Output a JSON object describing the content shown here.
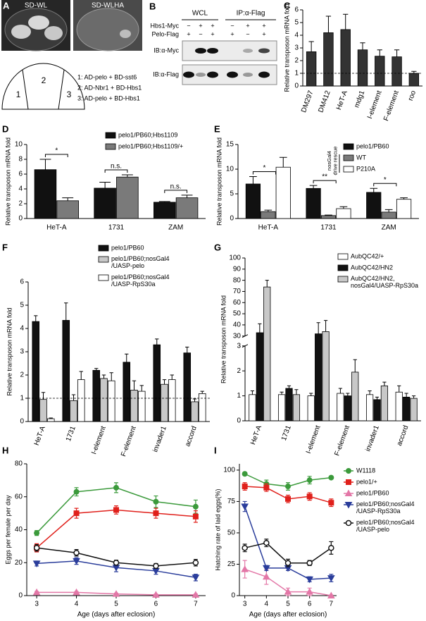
{
  "panel_a": {
    "label": "A",
    "plates": [
      "SD-WL",
      "SD-WLHA"
    ],
    "sectors": [
      "1",
      "2",
      "3"
    ],
    "key": [
      "1: AD-pelo + BD-sst6",
      "2: AD-Nbr1 + BD-Hbs1",
      "3: AD-pelo + BD-Hbs1"
    ]
  },
  "panel_b": {
    "label": "B",
    "groups": [
      "WCL",
      "IP:α-Flag"
    ],
    "rows": [
      {
        "name": "Hbs1-Myc",
        "signs": [
          "−",
          "+",
          "+",
          "−",
          "+",
          "+"
        ]
      },
      {
        "name": "Pelo-Flag",
        "signs": [
          "+",
          "−",
          "+",
          "+",
          "−",
          "+"
        ]
      }
    ],
    "blots": [
      "IB:α-Myc",
      "IB:α-Flag"
    ]
  },
  "chart_data": [
    {
      "type": "bar",
      "panel_label": "C",
      "ylabel": "Relative transposon mRNA fold",
      "categories": [
        "DM297",
        "DM412",
        "HeT-A",
        "mdg1",
        "I-element",
        "F-element",
        "roo"
      ],
      "values": [
        2.7,
        4.2,
        4.45,
        2.85,
        2.35,
        2.3,
        1.0
      ],
      "errors": [
        0.8,
        1.3,
        1.2,
        0.55,
        0.5,
        0.55,
        0.15
      ],
      "color": "#333333",
      "ylim": [
        0,
        6
      ],
      "yticks": [
        0,
        1,
        2,
        3,
        4,
        5,
        6
      ],
      "reference_line": 1
    },
    {
      "type": "bar",
      "panel_label": "D",
      "ylabel": "Relative transposon mRNA fold",
      "categories": [
        "HeT-A",
        "1731",
        "ZAM"
      ],
      "series": [
        {
          "name": "pelo1/PB60;Hbs1109",
          "color": "#111111",
          "values": [
            6.6,
            4.1,
            2.2
          ],
          "errors": [
            1.4,
            0.8,
            0.1
          ]
        },
        {
          "name": "pelo1/PB60;Hbs1109/+",
          "color": "#7a7a7a",
          "values": [
            2.4,
            5.6,
            2.8
          ],
          "errors": [
            0.4,
            0.3,
            0.35
          ]
        }
      ],
      "significance": [
        "*",
        "n.s.",
        "n.s."
      ],
      "ylim": [
        0,
        10
      ],
      "yticks": [
        0,
        2,
        4,
        6,
        8,
        10
      ],
      "legend": "upper right"
    },
    {
      "type": "bar",
      "panel_label": "E",
      "ylabel": "Relative transposon mRNA fold",
      "categories": [
        "HeT-A",
        "1731",
        "ZAM"
      ],
      "series": [
        {
          "name": "pelo1/PB60",
          "color": "#111111",
          "values": [
            7.0,
            6.1,
            5.3
          ],
          "errors": [
            1.5,
            0.6,
            0.8
          ]
        },
        {
          "name": "WT",
          "color": "#7a7a7a",
          "values": [
            1.4,
            0.6,
            1.3
          ],
          "errors": [
            0.3,
            0.1,
            0.5
          ]
        },
        {
          "name": "P210A",
          "color": "#ffffff",
          "values": [
            10.4,
            2.0,
            3.9
          ],
          "errors": [
            2.0,
            0.4,
            0.3
          ]
        }
      ],
      "significance": [
        "*",
        "**",
        "*"
      ],
      "legend_group_label": "nosGal4\ndrive rescue",
      "ylim": [
        0,
        15
      ],
      "yticks": [
        0,
        5,
        10,
        15
      ],
      "legend": "upper right"
    },
    {
      "type": "bar",
      "panel_label": "F",
      "ylabel": "Relative transposon mRNA fold",
      "categories": [
        "HeT-A",
        "1731",
        "I-element",
        "F-element",
        "invader1",
        "accord"
      ],
      "series": [
        {
          "name": "pelo1/PB60",
          "color": "#111111",
          "values": [
            4.3,
            4.35,
            2.2,
            2.55,
            3.3,
            2.95
          ],
          "errors": [
            0.25,
            0.75,
            0.08,
            0.35,
            0.25,
            0.25
          ]
        },
        {
          "name": "pelo1/PB60;nosGal4\n/UASP-pelo",
          "color": "#c8c8c8",
          "values": [
            0.95,
            0.9,
            1.85,
            1.35,
            1.6,
            0.85
          ],
          "errors": [
            0.3,
            0.25,
            0.15,
            0.4,
            0.2,
            0.12
          ]
        },
        {
          "name": "pelo1/PB60;nosGal4\n/UASP-RpS30a",
          "color": "#ffffff",
          "values": [
            0.12,
            1.8,
            1.75,
            1.3,
            1.8,
            1.2
          ],
          "errors": [
            0.03,
            0.35,
            0.35,
            0.25,
            0.2,
            0.1
          ]
        }
      ],
      "ylim": [
        0,
        6
      ],
      "yticks": [
        0,
        1,
        2,
        3,
        4,
        5,
        6
      ],
      "reference_line": 1,
      "legend": "above"
    },
    {
      "type": "bar",
      "panel_label": "G",
      "ylabel": "Relative transposon mRNA fold",
      "categories": [
        "HeT-A",
        "1731",
        "I-element",
        "F-element",
        "invader1",
        "accord"
      ],
      "series": [
        {
          "name": "AubQC42/+",
          "color": "#ffffff",
          "values": [
            1.05,
            1.05,
            1.0,
            1.1,
            1.05,
            1.15
          ],
          "errors": [
            0.15,
            0.1,
            0.1,
            0.2,
            0.15,
            0.25
          ]
        },
        {
          "name": "AubQC42/HN2",
          "color": "#111111",
          "values": [
            33,
            1.3,
            32,
            1.0,
            0.85,
            0.95
          ],
          "errors": [
            8,
            0.1,
            10,
            0.1,
            0.1,
            0.15
          ]
        },
        {
          "name": "AubQC42/HN2,\nnosGal4/UASP-RpS30a",
          "color": "#c8c8c8",
          "values": [
            74,
            1.05,
            34,
            1.95,
            1.4,
            0.9
          ],
          "errors": [
            6,
            0.2,
            10,
            0.5,
            0.15,
            0.1
          ]
        }
      ],
      "ylim": [
        0,
        100
      ],
      "axis_break": [
        3,
        30
      ],
      "yticks": [
        0,
        1,
        2,
        3,
        30,
        40,
        50,
        60,
        70,
        80,
        90,
        100
      ],
      "legend": "upper right"
    },
    {
      "type": "line",
      "panel_label": "H",
      "ylabel": "Eggs per female per day",
      "xlabel": "Age (days after eclosion)",
      "x": [
        3,
        4,
        5,
        6,
        7
      ],
      "xlim": [
        2.75,
        7.25
      ],
      "xticks": [
        3,
        4,
        5,
        6,
        7
      ],
      "ylim": [
        0,
        80
      ],
      "yticks": [
        0,
        20,
        40,
        60,
        80
      ],
      "series": [
        {
          "color": "#3b9a3b",
          "marker": "circle",
          "values": [
            38,
            63,
            65.5,
            57,
            54
          ],
          "errors": [
            1.5,
            2.5,
            3,
            3.5,
            4
          ]
        },
        {
          "color": "#e0201b",
          "marker": "square",
          "values": [
            29,
            50,
            52,
            50,
            48
          ],
          "errors": [
            2.5,
            3,
            2.5,
            3,
            3.5
          ]
        },
        {
          "color": "#e377a7",
          "marker": "triangle-up",
          "values": [
            2,
            2,
            1,
            0.5,
            0.5
          ],
          "errors": [
            0.5,
            0.5,
            0.5,
            0.5,
            0.5
          ]
        },
        {
          "color": "#2a3d9b",
          "marker": "triangle-down",
          "values": [
            19.5,
            21,
            17,
            15,
            11
          ],
          "errors": [
            1.5,
            2,
            2.5,
            2,
            2
          ]
        },
        {
          "color": "#111111",
          "marker": "open-circle",
          "values": [
            29,
            26,
            20,
            18,
            20
          ],
          "errors": [
            2,
            2,
            1.5,
            1.5,
            2
          ]
        }
      ]
    },
    {
      "type": "line",
      "panel_label": "I",
      "ylabel": "Hatching rate of laid eggs(%)",
      "xlabel": "Age (days after eclosion)",
      "x": [
        3,
        4,
        5,
        6,
        7
      ],
      "xlim": [
        2.75,
        7.25
      ],
      "xticks": [
        3,
        4,
        5,
        6,
        7
      ],
      "ylim": [
        0,
        105
      ],
      "yticks": [
        0,
        25,
        50,
        75,
        100
      ],
      "series": [
        {
          "name": "W1118",
          "color": "#3b9a3b",
          "marker": "circle",
          "values": [
            97,
            89,
            87,
            92,
            94
          ],
          "errors": [
            1,
            3,
            3,
            3,
            1
          ]
        },
        {
          "name": "pelo1/+",
          "color": "#e0201b",
          "marker": "square",
          "values": [
            87,
            86,
            77,
            79,
            74
          ],
          "errors": [
            3,
            3,
            3,
            3,
            3
          ]
        },
        {
          "name": "pelo1/PB60",
          "color": "#e377a7",
          "marker": "triangle-up",
          "values": [
            21,
            15,
            3,
            3,
            0
          ],
          "errors": [
            7,
            6,
            3,
            3,
            0.5
          ]
        },
        {
          "name": "pelo1/PB60;nosGal4\n/UASP-RpS30a",
          "color": "#2a3d9b",
          "marker": "triangle-down",
          "values": [
            71,
            22,
            22,
            13,
            14
          ],
          "errors": [
            4,
            2,
            2,
            2,
            3
          ]
        },
        {
          "name": "pelo1/PB60;nosGal4\n/UASP-pelo",
          "color": "#111111",
          "marker": "open-circle",
          "values": [
            38,
            42,
            26,
            26,
            38
          ],
          "errors": [
            3,
            3,
            3,
            2,
            5
          ]
        }
      ],
      "legend": "right"
    }
  ]
}
